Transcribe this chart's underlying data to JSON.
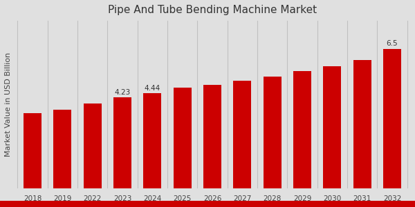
{
  "title": "Pipe And Tube Bending Machine Market",
  "ylabel": "Market Value in USD Billion",
  "categories": [
    "2018",
    "2019",
    "2022",
    "2023",
    "2024",
    "2025",
    "2026",
    "2027",
    "2028",
    "2029",
    "2030",
    "2031",
    "2032"
  ],
  "values": [
    3.5,
    3.65,
    3.95,
    4.23,
    4.44,
    4.68,
    4.82,
    5.02,
    5.22,
    5.45,
    5.68,
    5.98,
    6.5
  ],
  "bar_color": "#cc0000",
  "label_values": [
    null,
    null,
    null,
    "4.23",
    "4.44",
    null,
    null,
    null,
    null,
    null,
    null,
    null,
    "6.5"
  ],
  "background_color": "#e0e0e0",
  "title_fontsize": 11,
  "ylabel_fontsize": 8,
  "tick_fontsize": 7.5,
  "ylim": [
    0,
    7.8
  ],
  "bottom_bar_color": "#cc0000",
  "bottom_bar_height": 0.03
}
